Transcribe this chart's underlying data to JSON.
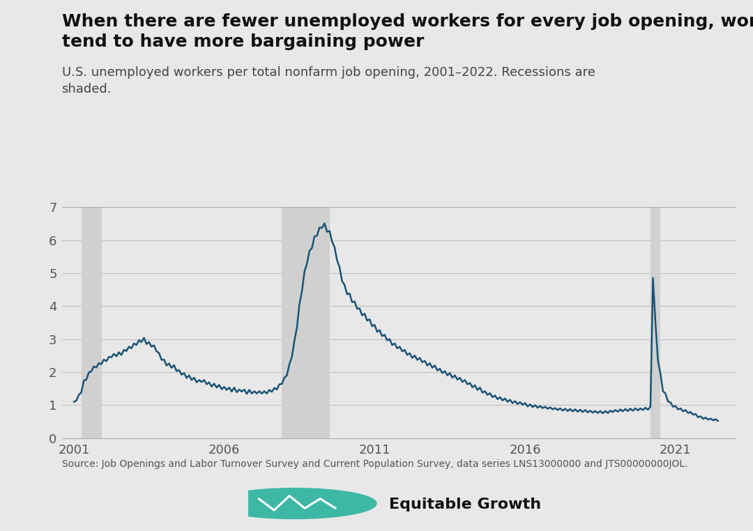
{
  "title": "When there are fewer unemployed workers for every job opening, workers\ntend to have more bargaining power",
  "subtitle": "U.S. unemployed workers per total nonfarm job opening, 2001–2022. Recessions are\nshaded.",
  "source": "Source: Job Openings and Labor Turnover Survey and Current Population Survey, data series LNS13000000 and JTS00000000JOL.",
  "line_color": "#1a5276",
  "line_width": 1.8,
  "bg_color": "#e8e8e8",
  "plot_bg_color": "#e8e8e8",
  "recession_color": "#d5d5d5",
  "recession_alpha": 1.0,
  "ylim": [
    0,
    7
  ],
  "yticks": [
    0,
    1,
    2,
    3,
    4,
    5,
    6,
    7
  ],
  "xticks": [
    2001,
    2006,
    2011,
    2016,
    2021
  ],
  "recessions": [
    {
      "start": 2001.25,
      "end": 2001.92
    },
    {
      "start": 2007.92,
      "end": 2009.5
    },
    {
      "start": 2020.17,
      "end": 2020.5
    }
  ],
  "data": {
    "dates": [
      2001.0,
      2001.083,
      2001.167,
      2001.25,
      2001.333,
      2001.417,
      2001.5,
      2001.583,
      2001.667,
      2001.75,
      2001.833,
      2001.917,
      2002.0,
      2002.083,
      2002.167,
      2002.25,
      2002.333,
      2002.417,
      2002.5,
      2002.583,
      2002.667,
      2002.75,
      2002.833,
      2002.917,
      2003.0,
      2003.083,
      2003.167,
      2003.25,
      2003.333,
      2003.417,
      2003.5,
      2003.583,
      2003.667,
      2003.75,
      2003.833,
      2003.917,
      2004.0,
      2004.083,
      2004.167,
      2004.25,
      2004.333,
      2004.417,
      2004.5,
      2004.583,
      2004.667,
      2004.75,
      2004.833,
      2004.917,
      2005.0,
      2005.083,
      2005.167,
      2005.25,
      2005.333,
      2005.417,
      2005.5,
      2005.583,
      2005.667,
      2005.75,
      2005.833,
      2005.917,
      2006.0,
      2006.083,
      2006.167,
      2006.25,
      2006.333,
      2006.417,
      2006.5,
      2006.583,
      2006.667,
      2006.75,
      2006.833,
      2006.917,
      2007.0,
      2007.083,
      2007.167,
      2007.25,
      2007.333,
      2007.417,
      2007.5,
      2007.583,
      2007.667,
      2007.75,
      2007.833,
      2007.917,
      2008.0,
      2008.083,
      2008.167,
      2008.25,
      2008.333,
      2008.417,
      2008.5,
      2008.583,
      2008.667,
      2008.75,
      2008.833,
      2008.917,
      2009.0,
      2009.083,
      2009.167,
      2009.25,
      2009.333,
      2009.417,
      2009.5,
      2009.583,
      2009.667,
      2009.75,
      2009.833,
      2009.917,
      2010.0,
      2010.083,
      2010.167,
      2010.25,
      2010.333,
      2010.417,
      2010.5,
      2010.583,
      2010.667,
      2010.75,
      2010.833,
      2010.917,
      2011.0,
      2011.083,
      2011.167,
      2011.25,
      2011.333,
      2011.417,
      2011.5,
      2011.583,
      2011.667,
      2011.75,
      2011.833,
      2011.917,
      2012.0,
      2012.083,
      2012.167,
      2012.25,
      2012.333,
      2012.417,
      2012.5,
      2012.583,
      2012.667,
      2012.75,
      2012.833,
      2012.917,
      2013.0,
      2013.083,
      2013.167,
      2013.25,
      2013.333,
      2013.417,
      2013.5,
      2013.583,
      2013.667,
      2013.75,
      2013.833,
      2013.917,
      2014.0,
      2014.083,
      2014.167,
      2014.25,
      2014.333,
      2014.417,
      2014.5,
      2014.583,
      2014.667,
      2014.75,
      2014.833,
      2014.917,
      2015.0,
      2015.083,
      2015.167,
      2015.25,
      2015.333,
      2015.417,
      2015.5,
      2015.583,
      2015.667,
      2015.75,
      2015.833,
      2015.917,
      2016.0,
      2016.083,
      2016.167,
      2016.25,
      2016.333,
      2016.417,
      2016.5,
      2016.583,
      2016.667,
      2016.75,
      2016.833,
      2016.917,
      2017.0,
      2017.083,
      2017.167,
      2017.25,
      2017.333,
      2017.417,
      2017.5,
      2017.583,
      2017.667,
      2017.75,
      2017.833,
      2017.917,
      2018.0,
      2018.083,
      2018.167,
      2018.25,
      2018.333,
      2018.417,
      2018.5,
      2018.583,
      2018.667,
      2018.75,
      2018.833,
      2018.917,
      2019.0,
      2019.083,
      2019.167,
      2019.25,
      2019.333,
      2019.417,
      2019.5,
      2019.583,
      2019.667,
      2019.75,
      2019.833,
      2019.917,
      2020.0,
      2020.083,
      2020.167,
      2020.25,
      2020.333,
      2020.417,
      2020.5,
      2020.583,
      2020.667,
      2020.75,
      2020.833,
      2020.917,
      2021.0,
      2021.083,
      2021.167,
      2021.25,
      2021.333,
      2021.417,
      2021.5,
      2021.583,
      2021.667,
      2021.75,
      2021.833,
      2021.917,
      2022.0,
      2022.083,
      2022.167,
      2022.25,
      2022.333,
      2022.417
    ],
    "values": [
      1.1,
      1.18,
      1.28,
      1.42,
      1.68,
      1.82,
      1.95,
      2.08,
      2.12,
      2.18,
      2.22,
      2.28,
      2.32,
      2.38,
      2.42,
      2.5,
      2.48,
      2.52,
      2.55,
      2.58,
      2.62,
      2.68,
      2.72,
      2.78,
      2.82,
      2.88,
      2.92,
      2.95,
      2.98,
      2.92,
      2.85,
      2.82,
      2.75,
      2.68,
      2.52,
      2.42,
      2.32,
      2.25,
      2.22,
      2.18,
      2.15,
      2.08,
      2.02,
      1.98,
      1.92,
      1.88,
      1.85,
      1.8,
      1.78,
      1.75,
      1.72,
      1.75,
      1.7,
      1.68,
      1.65,
      1.62,
      1.6,
      1.58,
      1.55,
      1.52,
      1.5,
      1.52,
      1.48,
      1.45,
      1.48,
      1.45,
      1.42,
      1.45,
      1.42,
      1.4,
      1.42,
      1.4,
      1.38,
      1.4,
      1.38,
      1.38,
      1.38,
      1.4,
      1.42,
      1.45,
      1.48,
      1.52,
      1.58,
      1.68,
      1.78,
      1.95,
      2.18,
      2.52,
      2.88,
      3.42,
      3.98,
      4.52,
      4.98,
      5.35,
      5.62,
      5.82,
      6.05,
      6.18,
      6.32,
      6.42,
      6.45,
      6.32,
      6.22,
      6.02,
      5.72,
      5.45,
      5.12,
      4.82,
      4.58,
      4.42,
      4.32,
      4.18,
      4.08,
      3.98,
      3.88,
      3.78,
      3.72,
      3.62,
      3.55,
      3.45,
      3.38,
      3.28,
      3.22,
      3.15,
      3.08,
      3.02,
      2.95,
      2.88,
      2.82,
      2.78,
      2.72,
      2.68,
      2.62,
      2.58,
      2.52,
      2.48,
      2.45,
      2.42,
      2.38,
      2.35,
      2.28,
      2.25,
      2.22,
      2.18,
      2.15,
      2.1,
      2.05,
      2.02,
      1.98,
      1.95,
      1.92,
      1.88,
      1.85,
      1.82,
      1.78,
      1.75,
      1.72,
      1.68,
      1.62,
      1.58,
      1.55,
      1.5,
      1.48,
      1.42,
      1.38,
      1.35,
      1.32,
      1.28,
      1.25,
      1.22,
      1.2,
      1.18,
      1.16,
      1.14,
      1.12,
      1.1,
      1.08,
      1.07,
      1.05,
      1.04,
      1.02,
      1.0,
      0.98,
      0.98,
      0.96,
      0.95,
      0.94,
      0.94,
      0.92,
      0.92,
      0.9,
      0.9,
      0.88,
      0.88,
      0.87,
      0.86,
      0.86,
      0.85,
      0.85,
      0.84,
      0.84,
      0.83,
      0.83,
      0.82,
      0.82,
      0.81,
      0.8,
      0.8,
      0.79,
      0.79,
      0.79,
      0.78,
      0.79,
      0.79,
      0.8,
      0.82,
      0.82,
      0.83,
      0.84,
      0.84,
      0.85,
      0.85,
      0.86,
      0.86,
      0.87,
      0.87,
      0.87,
      0.88,
      0.88,
      0.9,
      0.95,
      4.85,
      3.5,
      2.35,
      1.85,
      1.52,
      1.3,
      1.15,
      1.05,
      0.98,
      0.94,
      0.9,
      0.87,
      0.84,
      0.82,
      0.79,
      0.76,
      0.74,
      0.7,
      0.66,
      0.63,
      0.61,
      0.6,
      0.58,
      0.57,
      0.56,
      0.55,
      0.54
    ],
    "noise": [
      0.0,
      0.05,
      0.03,
      0.04,
      0.06,
      0.05,
      0.04,
      0.06,
      0.05,
      0.04,
      0.05,
      0.04,
      0.06,
      0.05,
      0.04,
      0.05,
      0.07,
      0.04,
      0.05,
      0.06,
      0.05,
      0.04,
      0.05,
      0.06,
      0.05,
      0.06,
      0.05,
      0.04,
      0.06,
      0.07,
      0.06,
      0.05,
      0.06,
      0.05,
      0.06,
      0.05,
      0.06,
      0.05,
      0.04,
      0.05,
      0.06,
      0.05,
      0.04,
      0.06,
      0.05,
      0.06,
      0.05,
      0.04,
      0.05,
      0.06,
      0.04,
      0.05,
      0.06,
      0.05,
      0.04,
      0.06,
      0.05,
      0.05,
      0.06,
      0.04,
      0.05,
      0.06,
      0.05,
      0.04,
      0.05,
      0.06,
      0.05,
      0.04,
      0.05,
      0.06,
      0.04,
      0.05,
      0.04,
      0.05,
      0.04,
      0.03,
      0.04,
      0.05,
      0.04,
      0.05,
      0.04,
      0.05,
      0.05,
      0.04,
      0.05,
      0.05,
      0.06,
      0.06,
      0.07,
      0.07,
      0.07,
      0.07,
      0.06,
      0.06,
      0.05,
      0.06,
      0.06,
      0.05,
      0.06,
      0.05,
      0.06,
      0.07,
      0.06,
      0.06,
      0.07,
      0.06,
      0.06,
      0.06,
      0.06,
      0.06,
      0.06,
      0.06,
      0.06,
      0.06,
      0.05,
      0.06,
      0.05,
      0.06,
      0.05,
      0.06,
      0.05,
      0.06,
      0.05,
      0.06,
      0.05,
      0.06,
      0.05,
      0.06,
      0.05,
      0.06,
      0.05,
      0.05,
      0.05,
      0.06,
      0.05,
      0.05,
      0.05,
      0.05,
      0.05,
      0.05,
      0.06,
      0.05,
      0.05,
      0.05,
      0.05,
      0.05,
      0.05,
      0.05,
      0.05,
      0.05,
      0.05,
      0.05,
      0.05,
      0.05,
      0.05,
      0.05,
      0.04,
      0.05,
      0.05,
      0.04,
      0.05,
      0.04,
      0.05,
      0.04,
      0.04,
      0.04,
      0.04,
      0.04,
      0.04,
      0.04,
      0.04,
      0.04,
      0.04,
      0.04,
      0.04,
      0.04,
      0.04,
      0.04,
      0.04,
      0.03,
      0.04,
      0.04,
      0.04,
      0.04,
      0.04,
      0.03,
      0.03,
      0.03,
      0.03,
      0.03,
      0.03,
      0.03,
      0.03,
      0.03,
      0.03,
      0.03,
      0.03,
      0.03,
      0.03,
      0.03,
      0.03,
      0.03,
      0.03,
      0.03,
      0.03,
      0.03,
      0.03,
      0.03,
      0.03,
      0.03,
      0.03,
      0.03,
      0.03,
      0.03,
      0.03,
      0.03,
      0.03,
      0.03,
      0.03,
      0.03,
      0.03,
      0.03,
      0.03,
      0.03,
      0.03,
      0.03,
      0.03,
      0.03,
      0.04,
      0.04,
      0.0,
      0.0,
      0.0,
      0.0,
      0.1,
      0.1,
      0.05,
      0.04,
      0.03,
      0.03,
      0.03,
      0.03,
      0.03,
      0.03,
      0.03,
      0.03,
      0.03,
      0.03,
      0.03,
      0.03,
      0.03,
      0.03,
      0.02,
      0.02,
      0.02,
      0.02,
      0.02,
      0.02
    ]
  },
  "title_fontsize": 18,
  "subtitle_fontsize": 13,
  "tick_fontsize": 13,
  "source_fontsize": 10,
  "logo_fontsize": 16
}
